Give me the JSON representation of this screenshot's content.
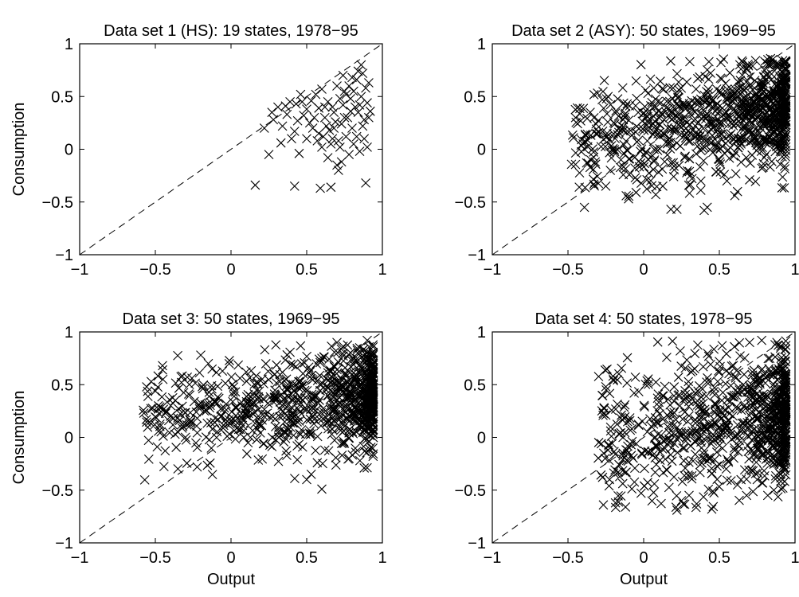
{
  "figure": {
    "point_color": "#000000",
    "background": "#ffffff",
    "marker": "x",
    "reference_line": "dashed 45-degree line (consumption = output)"
  },
  "chart_data": [
    {
      "type": "scatter",
      "title": "Data set 1 (HS): 19 states, 1978−95",
      "xlabel": "",
      "ylabel": "Consumption",
      "xlim": [
        -1,
        1
      ],
      "ylim": [
        -1,
        1
      ],
      "xticks": [
        "−1",
        "−0.5",
        "0",
        "0.5",
        "1"
      ],
      "yticks": [
        "−1",
        "−0.5",
        "0",
        "0.5",
        "1"
      ],
      "grid": false,
      "points": [
        [
          0.16,
          -0.34
        ],
        [
          0.42,
          -0.35
        ],
        [
          0.59,
          -0.37
        ],
        [
          0.66,
          -0.36
        ],
        [
          0.89,
          -0.32
        ],
        [
          0.25,
          -0.05
        ],
        [
          0.33,
          0.06
        ],
        [
          0.42,
          0.17
        ],
        [
          0.45,
          -0.04
        ],
        [
          0.5,
          0.1
        ],
        [
          0.22,
          0.2
        ],
        [
          0.27,
          0.35
        ],
        [
          0.34,
          0.22
        ],
        [
          0.36,
          0.41
        ],
        [
          0.39,
          0.45
        ],
        [
          0.43,
          0.43
        ],
        [
          0.46,
          0.52
        ],
        [
          0.5,
          0.38
        ],
        [
          0.53,
          0.46
        ],
        [
          0.56,
          0.52
        ],
        [
          0.58,
          0.39
        ],
        [
          0.6,
          0.57
        ],
        [
          0.62,
          0.3
        ],
        [
          0.64,
          0.45
        ],
        [
          0.65,
          0.18
        ],
        [
          0.67,
          0.1
        ],
        [
          0.68,
          0.35
        ],
        [
          0.7,
          -0.15
        ],
        [
          0.71,
          -0.2
        ],
        [
          0.72,
          0.02
        ],
        [
          0.73,
          0.24
        ],
        [
          0.74,
          0.42
        ],
        [
          0.75,
          0.55
        ],
        [
          0.76,
          0.12
        ],
        [
          0.77,
          0.3
        ],
        [
          0.78,
          0.6
        ],
        [
          0.79,
          0.48
        ],
        [
          0.8,
          0.2
        ],
        [
          0.81,
          0.05
        ],
        [
          0.82,
          0.4
        ],
        [
          0.83,
          0.66
        ],
        [
          0.84,
          0.35
        ],
        [
          0.85,
          -0.02
        ],
        [
          0.86,
          0.5
        ],
        [
          0.87,
          0.72
        ],
        [
          0.88,
          0.28
        ],
        [
          0.89,
          0.58
        ],
        [
          0.9,
          0.44
        ],
        [
          0.91,
          0.63
        ],
        [
          0.92,
          0.36
        ],
        [
          0.86,
          0.8
        ],
        [
          0.84,
          0.74
        ],
        [
          0.8,
          0.68
        ],
        [
          0.76,
          0.52
        ],
        [
          0.72,
          0.48
        ],
        [
          0.69,
          0.26
        ],
        [
          0.67,
          0.4
        ],
        [
          0.63,
          0.22
        ],
        [
          0.61,
          0.12
        ],
        [
          0.57,
          0.08
        ],
        [
          0.55,
          0.3
        ],
        [
          0.52,
          0.25
        ],
        [
          0.48,
          0.32
        ],
        [
          0.44,
          0.27
        ],
        [
          0.4,
          0.1
        ],
        [
          0.37,
          0.33
        ],
        [
          0.31,
          0.4
        ],
        [
          0.28,
          0.28
        ],
        [
          0.7,
          0.6
        ],
        [
          0.74,
          0.7
        ],
        [
          0.81,
          0.55
        ],
        [
          0.88,
          0.1
        ],
        [
          0.9,
          0.02
        ],
        [
          0.83,
          0.12
        ],
        [
          0.78,
          -0.05
        ],
        [
          0.73,
          -0.12
        ],
        [
          0.71,
          0.08
        ],
        [
          0.66,
          0.05
        ],
        [
          0.64,
          -0.08
        ],
        [
          0.6,
          0.02
        ],
        [
          0.87,
          0.22
        ],
        [
          0.91,
          0.3
        ],
        [
          0.85,
          0.42
        ],
        [
          0.79,
          0.36
        ],
        [
          0.75,
          0.3
        ],
        [
          0.68,
          0.2
        ],
        [
          0.62,
          0.4
        ],
        [
          0.58,
          0.15
        ],
        [
          0.54,
          0.2
        ],
        [
          0.47,
          0.45
        ]
      ]
    },
    {
      "type": "scatter",
      "title": "Data set 2 (ASY): 50 states, 1969−95",
      "xlabel": "",
      "ylabel": "",
      "xlim": [
        -1,
        1
      ],
      "ylim": [
        -1,
        1
      ],
      "xticks": [
        "−1",
        "−0.5",
        "0",
        "0.5",
        "1"
      ],
      "yticks": [
        "−1",
        "−0.5",
        "0",
        "0.5",
        "1"
      ],
      "grid": false,
      "cloud": {
        "n": 950,
        "seed": 21,
        "xmin": -0.48,
        "xmax": 0.94,
        "ymin": -0.6,
        "ymax": 0.86,
        "xbias": 0.55,
        "ycenter": 0.22,
        "yspread": 0.26,
        "yslope": 0.25
      },
      "points": [
        [
          -0.45,
          0.3
        ],
        [
          -0.4,
          0.05
        ],
        [
          -0.35,
          -0.1
        ],
        [
          -0.32,
          -0.12
        ],
        [
          -0.25,
          -0.35
        ],
        [
          -0.22,
          -0.2
        ],
        [
          -0.15,
          -0.1
        ],
        [
          -0.1,
          -0.47
        ],
        [
          -0.05,
          -0.41
        ],
        [
          0.08,
          -0.43
        ],
        [
          0.18,
          -0.57
        ],
        [
          0.22,
          -0.57
        ],
        [
          0.4,
          -0.58
        ],
        [
          0.42,
          -0.55
        ],
        [
          0.55,
          -0.3
        ],
        [
          0.7,
          -0.29
        ],
        [
          0.78,
          -0.18
        ],
        [
          0.82,
          0.85
        ],
        [
          0.88,
          0.8
        ],
        [
          0.9,
          0.75
        ]
      ]
    },
    {
      "type": "scatter",
      "title": "Data set 3: 50 states, 1969−95",
      "xlabel": "Output",
      "ylabel": "Consumption",
      "xlim": [
        -1,
        1
      ],
      "ylim": [
        -1,
        1
      ],
      "xticks": [
        "−1",
        "−0.5",
        "0",
        "0.5",
        "1"
      ],
      "yticks": [
        "−1",
        "−0.5",
        "0",
        "0.5",
        "1"
      ],
      "grid": false,
      "cloud": {
        "n": 950,
        "seed": 37,
        "xmin": -0.58,
        "xmax": 0.94,
        "ymin": -0.45,
        "ymax": 0.88,
        "xbias": 0.75,
        "ycenter": 0.28,
        "yspread": 0.24,
        "yslope": 0.15
      },
      "points": [
        [
          -0.56,
          0.17
        ],
        [
          -0.5,
          0.44
        ],
        [
          -0.48,
          0.3
        ],
        [
          -0.45,
          0.55
        ],
        [
          -0.4,
          0.2
        ],
        [
          -0.35,
          0.05
        ],
        [
          -0.2,
          0.78
        ],
        [
          -0.15,
          0.7
        ],
        [
          0.1,
          0.62
        ],
        [
          0.5,
          -0.4
        ],
        [
          0.53,
          -0.35
        ],
        [
          0.57,
          -0.24
        ],
        [
          0.6,
          -0.49
        ],
        [
          0.62,
          -0.12
        ],
        [
          0.78,
          -0.2
        ],
        [
          0.88,
          -0.29
        ],
        [
          0.9,
          0.92
        ],
        [
          0.85,
          0.85
        ],
        [
          0.7,
          0.9
        ],
        [
          0.6,
          0.75
        ]
      ]
    },
    {
      "type": "scatter",
      "title": "Data set 4: 50 states, 1978−95",
      "xlabel": "Output",
      "ylabel": "",
      "xlim": [
        -1,
        1
      ],
      "ylim": [
        -1,
        1
      ],
      "xticks": [
        "−1",
        "−0.5",
        "0",
        "0.5",
        "1"
      ],
      "yticks": [
        "−1",
        "−0.5",
        "0",
        "0.5",
        "1"
      ],
      "grid": false,
      "cloud": {
        "n": 900,
        "seed": 53,
        "xmin": -0.3,
        "xmax": 0.94,
        "ymin": -0.68,
        "ymax": 0.92,
        "xbias": 0.55,
        "ycenter": 0.08,
        "yspread": 0.32,
        "yslope": 0.2
      },
      "points": [
        [
          -0.28,
          -0.06
        ],
        [
          -0.25,
          0.48
        ],
        [
          -0.2,
          0.55
        ],
        [
          -0.12,
          -0.66
        ],
        [
          0.22,
          -0.69
        ],
        [
          0.25,
          -0.6
        ],
        [
          0.35,
          -0.63
        ],
        [
          0.45,
          -0.68
        ],
        [
          0.5,
          0.72
        ],
        [
          0.6,
          0.86
        ],
        [
          0.7,
          0.9
        ],
        [
          0.78,
          0.92
        ],
        [
          0.88,
          0.9
        ],
        [
          0.82,
          -0.55
        ],
        [
          0.86,
          -0.5
        ],
        [
          0.92,
          -0.48
        ],
        [
          0.75,
          -0.4
        ],
        [
          0.68,
          -0.55
        ],
        [
          0.62,
          -0.45
        ],
        [
          0.3,
          -0.55
        ]
      ]
    }
  ]
}
